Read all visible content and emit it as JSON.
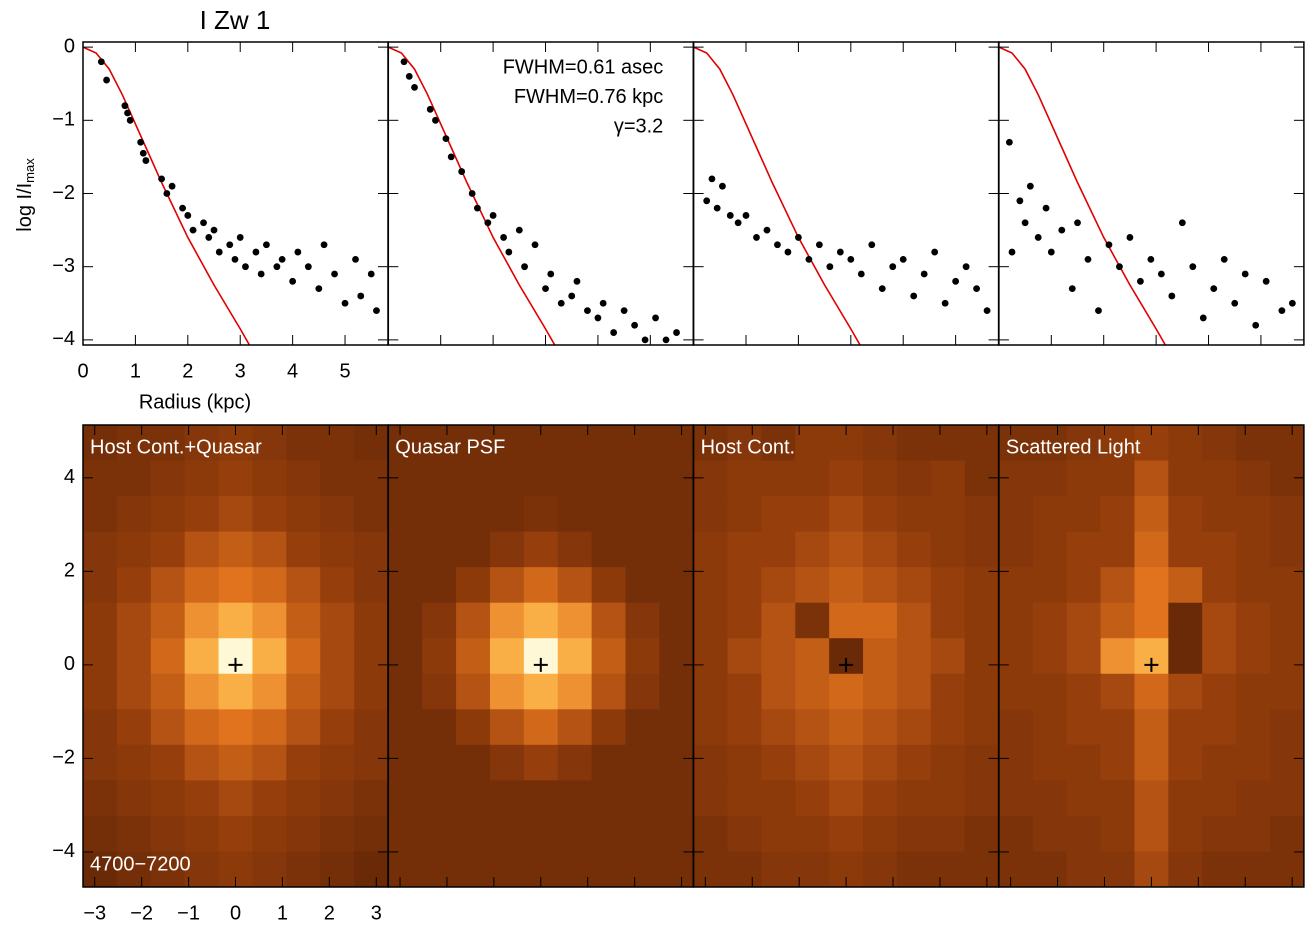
{
  "chart_data": [
    {
      "type": "scatter",
      "title": "I Zw 1",
      "ylabel": "log I/I",
      "ylabel_sub": "max",
      "xlabel": "Radius (kpc)",
      "xlim": [
        0,
        5.82
      ],
      "ylim": [
        -4.07,
        0.07
      ],
      "xticks": [
        0,
        1,
        2,
        3,
        4,
        5
      ],
      "yticks": [
        {
          "value": -4,
          "label": "−4"
        },
        {
          "value": -3,
          "label": "−3"
        },
        {
          "value": -2,
          "label": "−2"
        },
        {
          "value": -1,
          "label": "−1"
        },
        0
      ],
      "points": {
        "color": "#000000",
        "x": [
          0.35,
          0.45,
          0.8,
          0.85,
          0.9,
          1.1,
          1.15,
          1.2,
          1.5,
          1.6,
          1.7,
          1.9,
          2.0,
          2.1,
          2.3,
          2.4,
          2.5,
          2.6,
          2.8,
          2.9,
          3.0,
          3.1,
          3.3,
          3.4,
          3.5,
          3.7,
          3.8,
          4.0,
          4.1,
          4.3,
          4.5,
          4.6,
          4.8,
          5.0,
          5.2,
          5.3,
          5.5,
          5.6
        ],
        "y": [
          -0.2,
          -0.45,
          -0.8,
          -0.9,
          -1.0,
          -1.3,
          -1.45,
          -1.55,
          -1.8,
          -2.0,
          -1.9,
          -2.2,
          -2.3,
          -2.5,
          -2.4,
          -2.6,
          -2.5,
          -2.8,
          -2.7,
          -2.9,
          -2.6,
          -3.0,
          -2.8,
          -3.1,
          -2.7,
          -3.0,
          -2.9,
          -3.2,
          -2.8,
          -3.0,
          -3.3,
          -2.7,
          -3.1,
          -3.5,
          -2.9,
          -3.4,
          -3.1,
          -3.6
        ]
      },
      "model": {
        "color": "#e00000",
        "x": [
          0,
          0.25,
          0.5,
          0.75,
          1,
          1.25,
          1.5,
          2,
          2.5,
          3,
          3.2
        ],
        "y": [
          0,
          -0.08,
          -0.3,
          -0.65,
          -1.05,
          -1.45,
          -1.85,
          -2.6,
          -3.25,
          -3.85,
          -4.1
        ]
      }
    },
    {
      "type": "scatter",
      "xlim": [
        0,
        5.82
      ],
      "ylim": [
        -4.07,
        0.07
      ],
      "annotations": [
        "FWHM=0.61 asec",
        "FWHM=0.76 kpc",
        "γ=3.2"
      ],
      "points": {
        "color": "#000000",
        "x": [
          0.3,
          0.4,
          0.5,
          0.8,
          0.9,
          1.1,
          1.2,
          1.4,
          1.6,
          1.7,
          1.9,
          2.0,
          2.2,
          2.3,
          2.5,
          2.6,
          2.8,
          3.0,
          3.1,
          3.3,
          3.5,
          3.6,
          3.8,
          4.0,
          4.1,
          4.3,
          4.5,
          4.7,
          4.9,
          5.1,
          5.3,
          5.5
        ],
        "y": [
          -0.2,
          -0.4,
          -0.55,
          -0.85,
          -1.0,
          -1.25,
          -1.5,
          -1.7,
          -2.0,
          -2.2,
          -2.4,
          -2.3,
          -2.6,
          -2.8,
          -2.5,
          -3.0,
          -2.7,
          -3.3,
          -3.1,
          -3.5,
          -3.4,
          -3.2,
          -3.6,
          -3.7,
          -3.5,
          -3.9,
          -3.6,
          -3.8,
          -4.0,
          -3.7,
          -4.0,
          -3.9
        ]
      },
      "model": {
        "color": "#e00000",
        "x": [
          0,
          0.25,
          0.5,
          0.75,
          1,
          1.25,
          1.5,
          2,
          2.5,
          3,
          3.2
        ],
        "y": [
          0,
          -0.08,
          -0.3,
          -0.65,
          -1.05,
          -1.45,
          -1.85,
          -2.6,
          -3.25,
          -3.85,
          -4.1
        ]
      }
    },
    {
      "type": "scatter",
      "xlim": [
        0,
        5.82
      ],
      "ylim": [
        -4.07,
        0.07
      ],
      "points": {
        "color": "#000000",
        "x": [
          0.25,
          0.35,
          0.45,
          0.55,
          0.7,
          0.85,
          1.0,
          1.2,
          1.4,
          1.6,
          1.8,
          2.0,
          2.2,
          2.4,
          2.6,
          2.8,
          3.0,
          3.2,
          3.4,
          3.6,
          3.8,
          4.0,
          4.2,
          4.4,
          4.6,
          4.8,
          5.0,
          5.2,
          5.4,
          5.6
        ],
        "y": [
          -2.1,
          -1.8,
          -2.2,
          -1.9,
          -2.3,
          -2.4,
          -2.3,
          -2.6,
          -2.5,
          -2.7,
          -2.8,
          -2.6,
          -2.9,
          -2.7,
          -3.0,
          -2.8,
          -2.9,
          -3.1,
          -2.7,
          -3.3,
          -3.0,
          -2.9,
          -3.4,
          -3.1,
          -2.8,
          -3.5,
          -3.2,
          -3.0,
          -3.3,
          -3.6
        ]
      },
      "model": {
        "color": "#e00000",
        "x": [
          0,
          0.25,
          0.5,
          0.75,
          1,
          1.25,
          1.5,
          2,
          2.5,
          3,
          3.2
        ],
        "y": [
          0,
          -0.08,
          -0.3,
          -0.65,
          -1.05,
          -1.45,
          -1.85,
          -2.6,
          -3.25,
          -3.85,
          -4.1
        ]
      }
    },
    {
      "type": "scatter",
      "xlim": [
        0,
        5.82
      ],
      "ylim": [
        -4.07,
        0.07
      ],
      "points": {
        "color": "#000000",
        "x": [
          0.2,
          0.25,
          0.4,
          0.5,
          0.6,
          0.75,
          0.9,
          1.0,
          1.2,
          1.4,
          1.5,
          1.7,
          1.9,
          2.1,
          2.3,
          2.5,
          2.7,
          2.9,
          3.1,
          3.3,
          3.5,
          3.7,
          3.9,
          4.1,
          4.3,
          4.5,
          4.7,
          4.9,
          5.1,
          5.4,
          5.6
        ],
        "y": [
          -1.3,
          -2.8,
          -2.1,
          -2.4,
          -1.9,
          -2.6,
          -2.2,
          -2.8,
          -2.5,
          -3.3,
          -2.4,
          -2.9,
          -3.6,
          -2.7,
          -3.0,
          -2.6,
          -3.2,
          -2.9,
          -3.1,
          -3.4,
          -2.4,
          -3.0,
          -3.7,
          -3.3,
          -2.9,
          -3.5,
          -3.1,
          -3.8,
          -3.2,
          -3.6,
          -3.5
        ]
      },
      "model": {
        "color": "#e00000",
        "x": [
          0,
          0.25,
          0.5,
          0.75,
          1,
          1.25,
          1.5,
          2,
          2.5,
          3,
          3.2
        ],
        "y": [
          0,
          -0.08,
          -0.3,
          -0.65,
          -1.05,
          -1.45,
          -1.85,
          -2.6,
          -3.25,
          -3.85,
          -4.1
        ]
      }
    },
    {
      "type": "heatmap",
      "label": "Host Cont.+Quasar",
      "annotation": "4700−7200",
      "xlim": [
        -3.25,
        3.25
      ],
      "ylim": [
        -4.75,
        5.13
      ],
      "xticks": [
        {
          "value": -3,
          "label": "−3"
        },
        {
          "value": -2,
          "label": "−2"
        },
        {
          "value": -1,
          "label": "−1"
        },
        0,
        1,
        2,
        3
      ],
      "yticks": [
        {
          "value": -4,
          "label": "−4"
        },
        {
          "value": -2,
          "label": "−2"
        },
        0,
        2,
        4
      ],
      "z": [
        [
          0.15,
          0.2,
          0.2,
          0.25,
          0.3,
          0.25,
          0.2,
          0.2,
          0.15
        ],
        [
          0.2,
          0.2,
          0.25,
          0.3,
          0.35,
          0.3,
          0.25,
          0.2,
          0.2
        ],
        [
          0.2,
          0.25,
          0.3,
          0.35,
          0.4,
          0.35,
          0.3,
          0.25,
          0.2
        ],
        [
          0.25,
          0.3,
          0.35,
          0.45,
          0.5,
          0.45,
          0.35,
          0.3,
          0.25
        ],
        [
          0.25,
          0.35,
          0.45,
          0.55,
          0.6,
          0.55,
          0.45,
          0.35,
          0.25
        ],
        [
          0.3,
          0.4,
          0.5,
          0.7,
          0.8,
          0.7,
          0.5,
          0.4,
          0.3
        ],
        [
          0.3,
          0.4,
          0.55,
          0.8,
          1,
          0.8,
          0.55,
          0.4,
          0.3
        ],
        [
          0.3,
          0.4,
          0.5,
          0.7,
          0.8,
          0.7,
          0.5,
          0.4,
          0.3
        ],
        [
          0.25,
          0.35,
          0.45,
          0.55,
          0.6,
          0.55,
          0.45,
          0.35,
          0.25
        ],
        [
          0.25,
          0.3,
          0.35,
          0.45,
          0.5,
          0.45,
          0.35,
          0.3,
          0.25
        ],
        [
          0.2,
          0.25,
          0.3,
          0.35,
          0.4,
          0.35,
          0.3,
          0.25,
          0.2
        ],
        [
          0.15,
          0.2,
          0.25,
          0.3,
          0.35,
          0.3,
          0.25,
          0.2,
          0.15
        ],
        [
          0.1,
          0.15,
          0.2,
          0.25,
          0.3,
          0.25,
          0.2,
          0.15,
          0.1
        ]
      ]
    },
    {
      "type": "heatmap",
      "label": "Quasar PSF",
      "xlim": [
        -3.25,
        3.25
      ],
      "ylim": [
        -4.75,
        5.13
      ],
      "z": [
        [
          0.15,
          0.15,
          0.15,
          0.15,
          0.15,
          0.15,
          0.15,
          0.15,
          0.15
        ],
        [
          0.15,
          0.15,
          0.15,
          0.15,
          0.15,
          0.15,
          0.15,
          0.15,
          0.15
        ],
        [
          0.15,
          0.15,
          0.15,
          0.15,
          0.2,
          0.15,
          0.15,
          0.15,
          0.15
        ],
        [
          0.15,
          0.15,
          0.15,
          0.25,
          0.35,
          0.25,
          0.15,
          0.15,
          0.15
        ],
        [
          0.15,
          0.15,
          0.3,
          0.45,
          0.55,
          0.45,
          0.3,
          0.15,
          0.15
        ],
        [
          0.15,
          0.25,
          0.45,
          0.7,
          0.8,
          0.7,
          0.45,
          0.25,
          0.15
        ],
        [
          0.15,
          0.3,
          0.5,
          0.8,
          1,
          0.8,
          0.5,
          0.3,
          0.15
        ],
        [
          0.15,
          0.25,
          0.45,
          0.7,
          0.8,
          0.7,
          0.45,
          0.25,
          0.15
        ],
        [
          0.15,
          0.15,
          0.3,
          0.45,
          0.55,
          0.45,
          0.3,
          0.15,
          0.15
        ],
        [
          0.15,
          0.15,
          0.15,
          0.25,
          0.35,
          0.25,
          0.15,
          0.15,
          0.15
        ],
        [
          0.15,
          0.15,
          0.15,
          0.15,
          0.15,
          0.15,
          0.15,
          0.15,
          0.15
        ],
        [
          0.15,
          0.15,
          0.15,
          0.15,
          0.15,
          0.15,
          0.15,
          0.15,
          0.15
        ],
        [
          0.15,
          0.15,
          0.15,
          0.15,
          0.15,
          0.15,
          0.15,
          0.15,
          0.15
        ]
      ]
    },
    {
      "type": "heatmap",
      "label": "Host Cont.",
      "xlim": [
        -3.25,
        3.25
      ],
      "ylim": [
        -4.75,
        5.13
      ],
      "z": [
        [
          0.2,
          0.25,
          0.2,
          0.3,
          0.3,
          0.25,
          0.2,
          0.2,
          0.2
        ],
        [
          0.25,
          0.3,
          0.3,
          0.3,
          0.35,
          0.3,
          0.25,
          0.3,
          0.2
        ],
        [
          0.25,
          0.3,
          0.35,
          0.35,
          0.4,
          0.35,
          0.3,
          0.3,
          0.25
        ],
        [
          0.3,
          0.35,
          0.35,
          0.4,
          0.45,
          0.4,
          0.35,
          0.3,
          0.25
        ],
        [
          0.3,
          0.35,
          0.4,
          0.45,
          0.5,
          0.45,
          0.4,
          0.35,
          0.3
        ],
        [
          0.3,
          0.35,
          0.45,
          0.2,
          0.55,
          0.55,
          0.45,
          0.35,
          0.3
        ],
        [
          0.3,
          0.4,
          0.45,
          0.5,
          0.1,
          0.5,
          0.45,
          0.4,
          0.3
        ],
        [
          0.3,
          0.35,
          0.45,
          0.5,
          0.55,
          0.5,
          0.45,
          0.35,
          0.3
        ],
        [
          0.3,
          0.35,
          0.4,
          0.45,
          0.5,
          0.45,
          0.4,
          0.35,
          0.3
        ],
        [
          0.25,
          0.3,
          0.35,
          0.4,
          0.45,
          0.4,
          0.35,
          0.3,
          0.25
        ],
        [
          0.25,
          0.3,
          0.3,
          0.35,
          0.4,
          0.35,
          0.3,
          0.3,
          0.25
        ],
        [
          0.2,
          0.25,
          0.3,
          0.3,
          0.35,
          0.3,
          0.25,
          0.25,
          0.2
        ],
        [
          0.2,
          0.2,
          0.25,
          0.25,
          0.3,
          0.25,
          0.2,
          0.2,
          0.2
        ]
      ]
    },
    {
      "type": "heatmap",
      "label": "Scattered Light",
      "xlim": [
        -3.25,
        3.25
      ],
      "ylim": [
        -4.75,
        5.13
      ],
      "z": [
        [
          0.2,
          0.2,
          0.25,
          0.3,
          0.35,
          0.3,
          0.25,
          0.2,
          0.2
        ],
        [
          0.25,
          0.25,
          0.3,
          0.3,
          0.45,
          0.3,
          0.3,
          0.25,
          0.2
        ],
        [
          0.25,
          0.3,
          0.3,
          0.35,
          0.5,
          0.35,
          0.3,
          0.3,
          0.25
        ],
        [
          0.25,
          0.3,
          0.35,
          0.35,
          0.55,
          0.35,
          0.35,
          0.3,
          0.25
        ],
        [
          0.3,
          0.3,
          0.35,
          0.45,
          0.6,
          0.5,
          0.35,
          0.3,
          0.3
        ],
        [
          0.3,
          0.35,
          0.4,
          0.5,
          0.6,
          0.1,
          0.4,
          0.35,
          0.3
        ],
        [
          0.3,
          0.35,
          0.4,
          0.7,
          0.8,
          0.1,
          0.4,
          0.35,
          0.3
        ],
        [
          0.3,
          0.3,
          0.35,
          0.4,
          0.55,
          0.4,
          0.35,
          0.3,
          0.3
        ],
        [
          0.25,
          0.3,
          0.35,
          0.35,
          0.5,
          0.35,
          0.35,
          0.3,
          0.25
        ],
        [
          0.25,
          0.3,
          0.3,
          0.35,
          0.5,
          0.35,
          0.3,
          0.3,
          0.25
        ],
        [
          0.25,
          0.25,
          0.3,
          0.3,
          0.45,
          0.3,
          0.3,
          0.25,
          0.25
        ],
        [
          0.2,
          0.25,
          0.25,
          0.3,
          0.45,
          0.3,
          0.25,
          0.25,
          0.2
        ],
        [
          0.2,
          0.2,
          0.25,
          0.25,
          0.4,
          0.25,
          0.2,
          0.2,
          0.2
        ]
      ]
    }
  ]
}
